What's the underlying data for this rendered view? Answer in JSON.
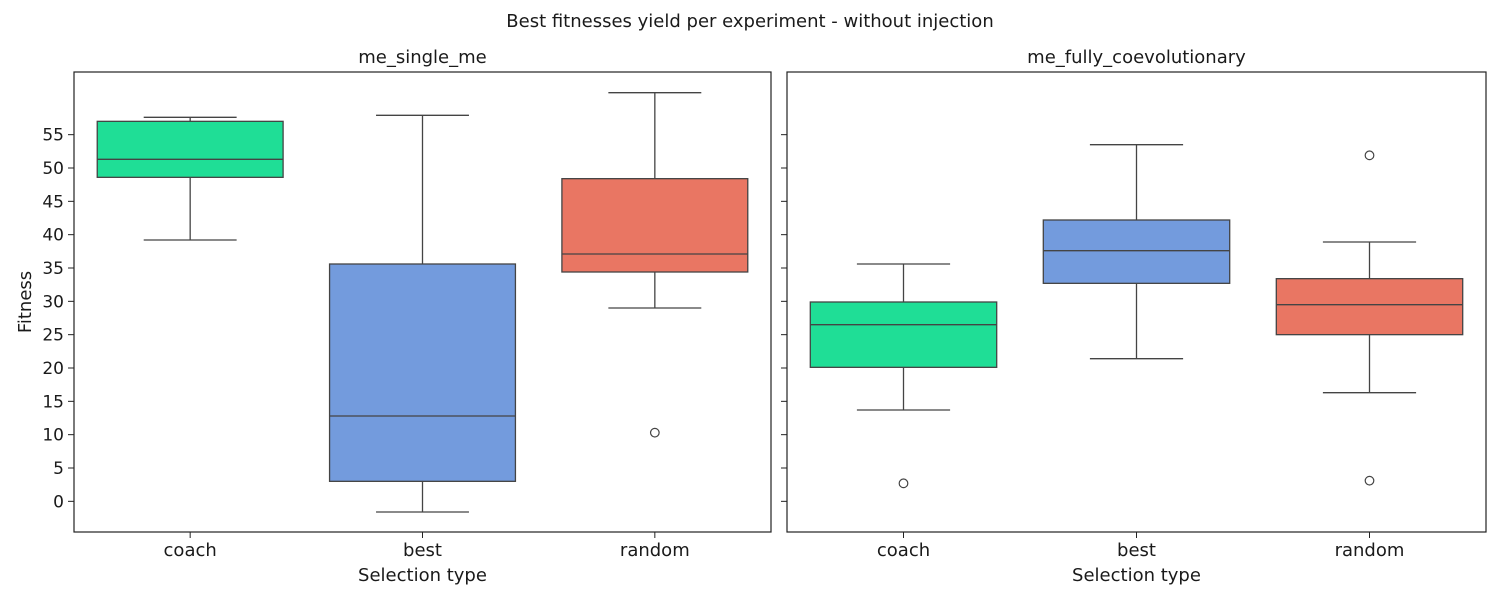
{
  "suptitle": "Best fitnesses yield per experiment - without injection",
  "colors": {
    "coach": "#1fde96",
    "best": "#739bdd",
    "random": "#e97663",
    "box_edge": "#444444",
    "frame": "#222222"
  },
  "chart_data": [
    {
      "type": "box",
      "title": "me_single_me",
      "xlabel": "Selection type",
      "ylabel": "Fitness",
      "categories": [
        "coach",
        "best",
        "random"
      ],
      "yticks": [
        0,
        5,
        10,
        15,
        20,
        25,
        30,
        35,
        40,
        45,
        50,
        55
      ],
      "ylim": [
        -4.6,
        64.4
      ],
      "boxes": [
        {
          "category": "coach",
          "whisker_low": 39.2,
          "q1": 48.6,
          "median": 51.3,
          "q3": 57.0,
          "whisker_high": 57.6,
          "outliers": []
        },
        {
          "category": "best",
          "whisker_low": -1.6,
          "q1": 3.0,
          "median": 12.8,
          "q3": 35.6,
          "whisker_high": 57.9,
          "outliers": []
        },
        {
          "category": "random",
          "whisker_low": 29.0,
          "q1": 34.4,
          "median": 37.1,
          "q3": 48.4,
          "whisker_high": 61.3,
          "outliers": [
            10.3
          ]
        }
      ]
    },
    {
      "type": "box",
      "title": "me_fully_coevolutionary",
      "xlabel": "Selection type",
      "ylabel": "",
      "categories": [
        "coach",
        "best",
        "random"
      ],
      "yticks": [
        0,
        5,
        10,
        15,
        20,
        25,
        30,
        35,
        40,
        45,
        50,
        55
      ],
      "ylim": [
        -4.6,
        64.4
      ],
      "show_tick_labels": false,
      "boxes": [
        {
          "category": "coach",
          "whisker_low": 13.7,
          "q1": 20.1,
          "median": 26.5,
          "q3": 29.9,
          "whisker_high": 35.6,
          "outliers": [
            2.7
          ]
        },
        {
          "category": "best",
          "whisker_low": 21.4,
          "q1": 32.7,
          "median": 37.6,
          "q3": 42.2,
          "whisker_high": 53.5,
          "outliers": []
        },
        {
          "category": "random",
          "whisker_low": 16.3,
          "q1": 25.0,
          "median": 29.5,
          "q3": 33.4,
          "whisker_high": 38.9,
          "outliers": [
            51.9,
            3.1
          ]
        }
      ]
    }
  ]
}
